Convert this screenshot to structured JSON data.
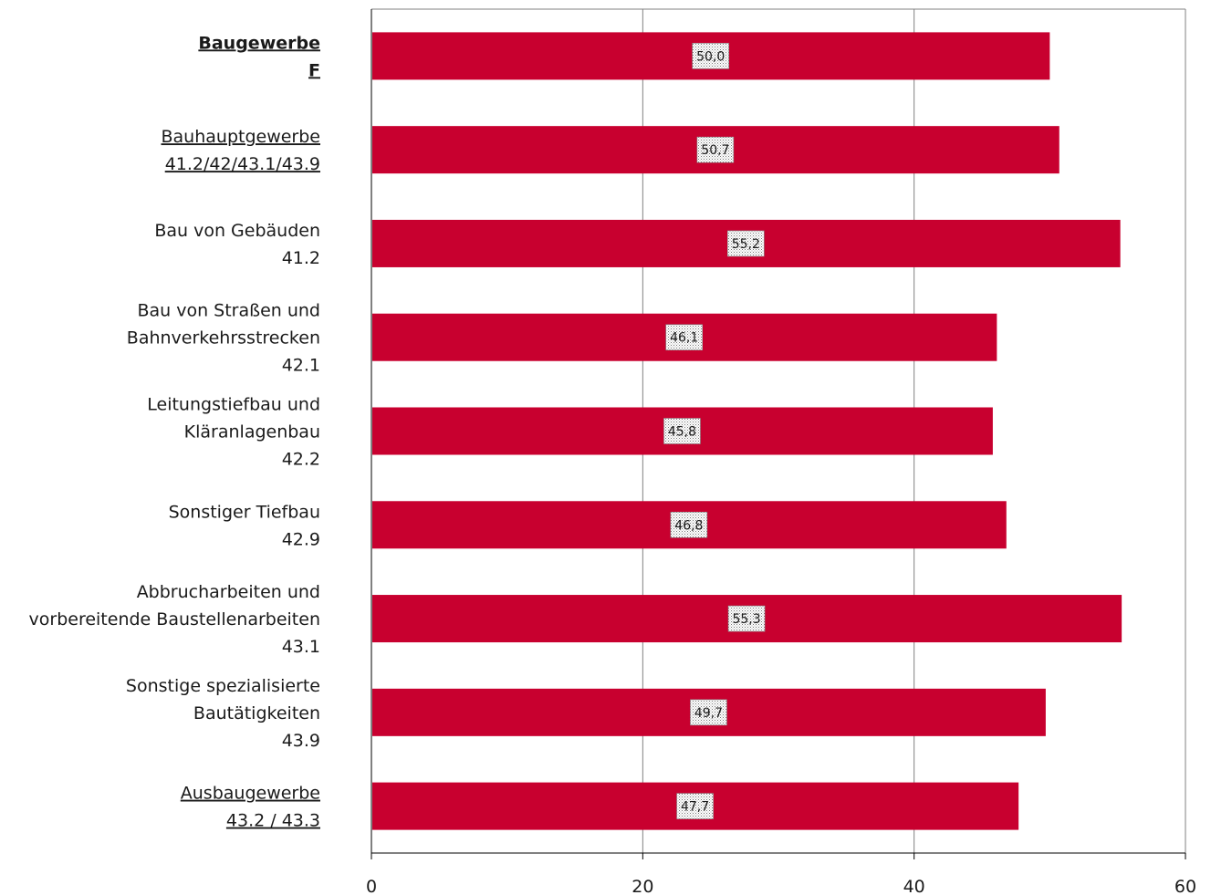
{
  "chart_data": {
    "type": "bar",
    "orientation": "horizontal",
    "categories": [
      {
        "lines": [
          "Baugewerbe",
          "F"
        ],
        "style": "bold-underline"
      },
      {
        "lines": [
          "Bauhauptgewerbe",
          "41.2/42/43.1/43.9"
        ],
        "style": "underline"
      },
      {
        "lines": [
          "Bau von Gebäuden",
          "41.2"
        ],
        "style": "normal"
      },
      {
        "lines": [
          "Bau von Straßen und",
          "Bahnverkehrsstrecken",
          "42.1"
        ],
        "style": "normal"
      },
      {
        "lines": [
          "Leitungstiefbau und",
          "Kläranlagenbau",
          "42.2"
        ],
        "style": "normal"
      },
      {
        "lines": [
          "Sonstiger Tiefbau",
          "42.9"
        ],
        "style": "normal"
      },
      {
        "lines": [
          "Abbrucharbeiten und",
          "vorbereitende Baustellenarbeiten",
          "43.1"
        ],
        "style": "normal"
      },
      {
        "lines": [
          "Sonstige spezialisierte",
          "Bautätigkeiten",
          "43.9"
        ],
        "style": "normal"
      },
      {
        "lines": [
          "Ausbaugewerbe",
          "43.2 / 43.3"
        ],
        "style": "underline"
      }
    ],
    "values": [
      50.0,
      50.7,
      55.2,
      46.1,
      45.8,
      46.8,
      55.3,
      49.7,
      47.7
    ],
    "data_labels": [
      "50,0",
      "50,7",
      "55,2",
      "46,1",
      "45,8",
      "46,8",
      "55,3",
      "49,7",
      "47,7"
    ],
    "xlim": [
      0,
      60
    ],
    "xticks": [
      0,
      20,
      40,
      60
    ],
    "xtick_labels": [
      "0",
      "20",
      "40",
      "60"
    ],
    "grid": "vertical",
    "bar_color": "#c8002f",
    "title": "",
    "xlabel": "",
    "ylabel": ""
  }
}
